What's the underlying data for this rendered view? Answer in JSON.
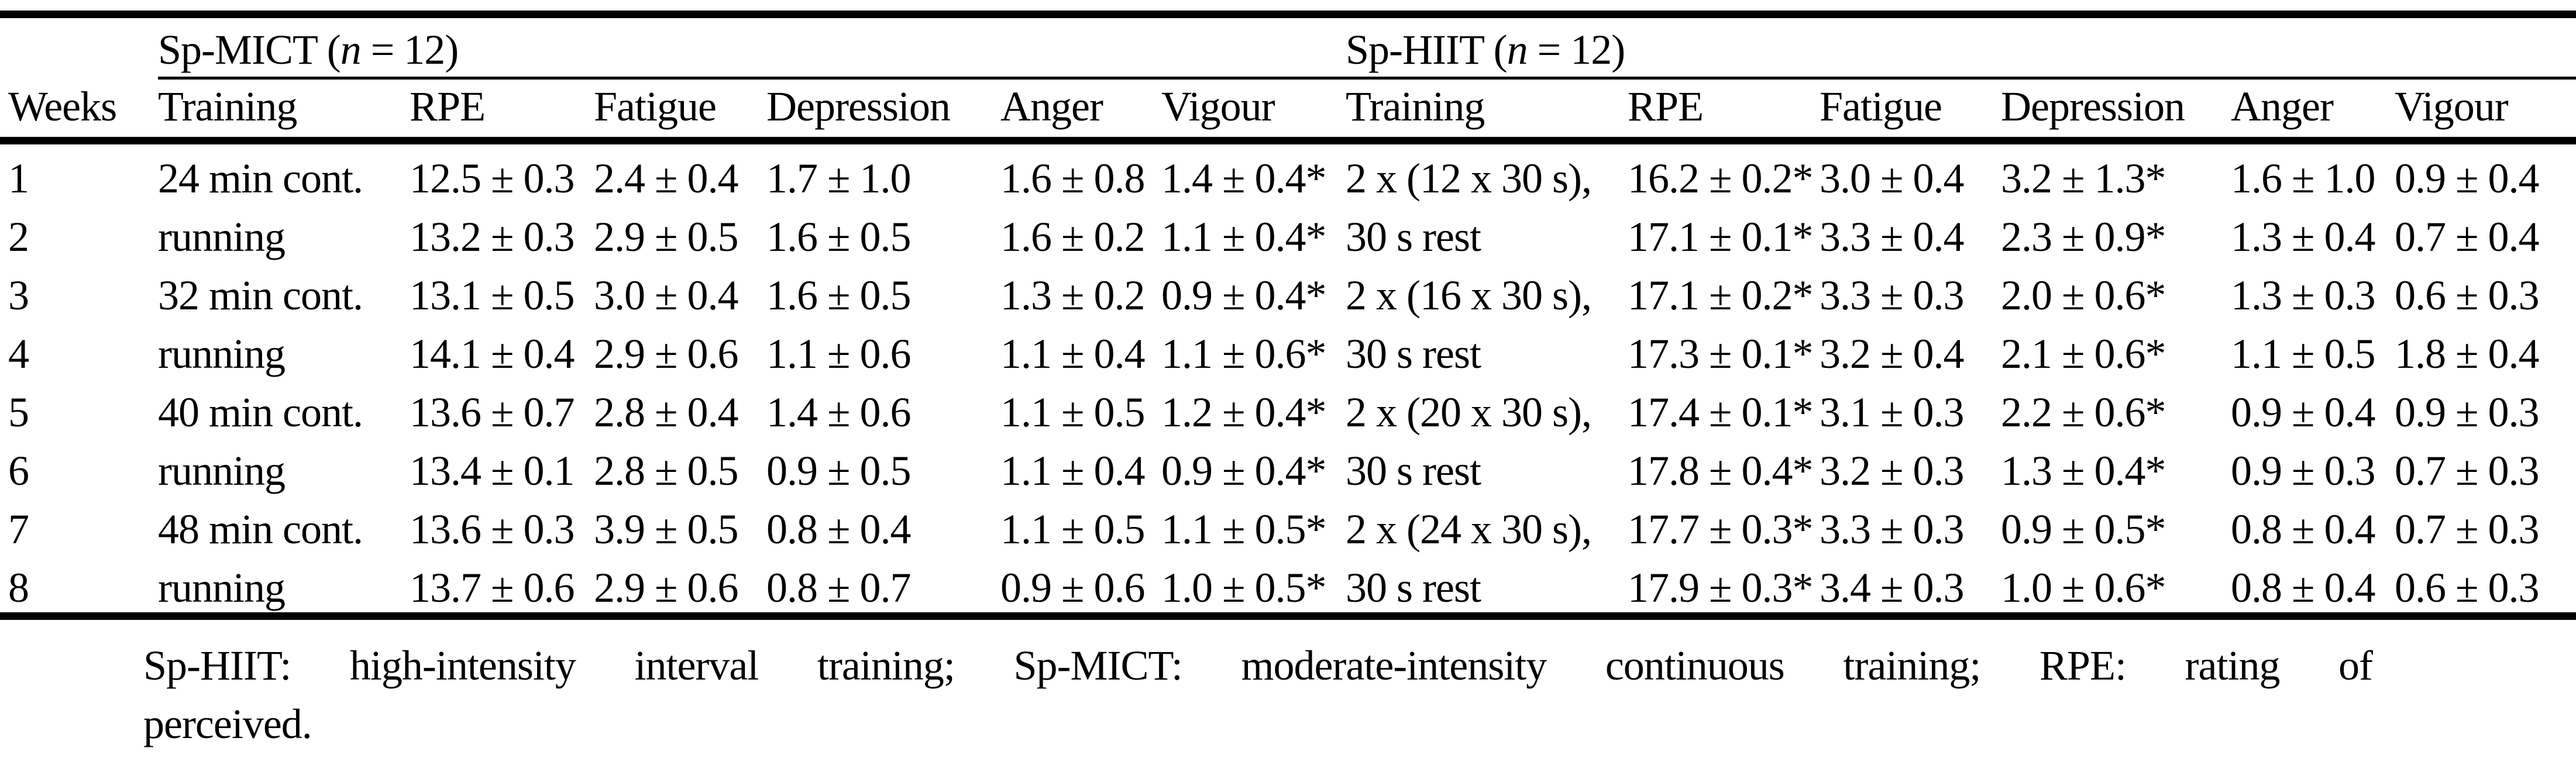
{
  "page": {
    "background": "#ffffff",
    "text_color": "#000000",
    "rule_color": "#000000"
  },
  "table": {
    "groups": [
      {
        "prefix": "Sp-MICT (",
        "n": "n",
        "suffix": " = 12)"
      },
      {
        "prefix": "Sp-HIIT (",
        "n": "n",
        "suffix": " = 12)"
      }
    ],
    "columns": [
      "Weeks",
      "Training",
      "RPE",
      "Fatigue",
      "Depression",
      "Anger",
      "Vigour",
      "Training",
      "RPE",
      "Fatigue",
      "Depression",
      "Anger",
      "Vigour"
    ],
    "column_keys": [
      "weeks",
      "training-mict",
      "rpe-mict",
      "fatigue-mict",
      "depression-mict",
      "anger-mict",
      "vigour-mict",
      "training-hiit",
      "rpe-hiit",
      "fatigue-hiit",
      "depression-hiit",
      "anger-hiit",
      "vigour-hiit"
    ],
    "rows": [
      [
        "1",
        "24 min cont.",
        "12.5 ± 0.3",
        "2.4 ± 0.4",
        "1.7 ± 1.0",
        "1.6 ± 0.8",
        "1.4 ± 0.4*",
        "2 x (12 x 30 s),",
        "16.2 ± 0.2*",
        "3.0 ± 0.4",
        "3.2 ± 1.3*",
        "1.6 ± 1.0",
        "0.9 ± 0.4"
      ],
      [
        "2",
        "running",
        "13.2 ± 0.3",
        "2.9 ± 0.5",
        "1.6 ± 0.5",
        "1.6 ± 0.2",
        "1.1 ± 0.4*",
        "30 s rest",
        "17.1 ± 0.1*",
        "3.3 ± 0.4",
        "2.3 ± 0.9*",
        "1.3 ± 0.4",
        "0.7 ± 0.4"
      ],
      [
        "3",
        "32 min cont.",
        "13.1 ± 0.5",
        "3.0 ± 0.4",
        "1.6 ± 0.5",
        "1.3 ± 0.2",
        "0.9 ± 0.4*",
        "2 x (16 x 30 s),",
        "17.1 ± 0.2*",
        "3.3 ± 0.3",
        "2.0 ± 0.6*",
        "1.3 ± 0.3",
        "0.6 ± 0.3"
      ],
      [
        "4",
        "running",
        "14.1 ± 0.4",
        "2.9 ± 0.6",
        "1.1 ± 0.6",
        "1.1 ± 0.4",
        "1.1 ± 0.6*",
        "30 s rest",
        "17.3 ± 0.1*",
        "3.2 ± 0.4",
        "2.1 ± 0.6*",
        "1.1 ± 0.5",
        "1.8 ± 0.4"
      ],
      [
        "5",
        "40 min cont.",
        "13.6 ± 0.7",
        "2.8 ± 0.4",
        "1.4 ± 0.6",
        "1.1 ± 0.5",
        "1.2 ± 0.4*",
        "2 x (20 x 30 s),",
        "17.4 ± 0.1*",
        "3.1 ± 0.3",
        "2.2 ± 0.6*",
        "0.9 ± 0.4",
        "0.9 ± 0.3"
      ],
      [
        "6",
        "running",
        "13.4 ± 0.1",
        "2.8 ± 0.5",
        "0.9 ± 0.5",
        "1.1 ± 0.4",
        "0.9 ± 0.4*",
        "30 s rest",
        "17.8 ± 0.4*",
        "3.2 ± 0.3",
        "1.3 ± 0.4*",
        "0.9 ± 0.3",
        "0.7 ± 0.3"
      ],
      [
        "7",
        "48 min cont.",
        "13.6 ± 0.3",
        "3.9 ± 0.5",
        "0.8 ± 0.4",
        "1.1 ± 0.5",
        "1.1 ± 0.5*",
        "2 x (24 x 30 s),",
        "17.7 ± 0.3*",
        "3.3 ± 0.3",
        "0.9 ± 0.5*",
        "0.8 ± 0.4",
        "0.7 ± 0.3"
      ],
      [
        "8",
        "running",
        "13.7 ± 0.6",
        "2.9 ± 0.6",
        "0.8 ± 0.7",
        "0.9 ± 0.6",
        "1.0 ± 0.5*",
        "30 s rest",
        "17.9 ± 0.3*",
        "3.4 ± 0.3",
        "1.0 ± 0.6*",
        "0.8 ± 0.4",
        "0.6 ± 0.3"
      ]
    ]
  },
  "footnote": {
    "line1": "Sp-HIIT: high-intensity interval training; Sp-MICT: moderate-intensity continuous training; RPE: rating of",
    "line2": "perceived."
  }
}
